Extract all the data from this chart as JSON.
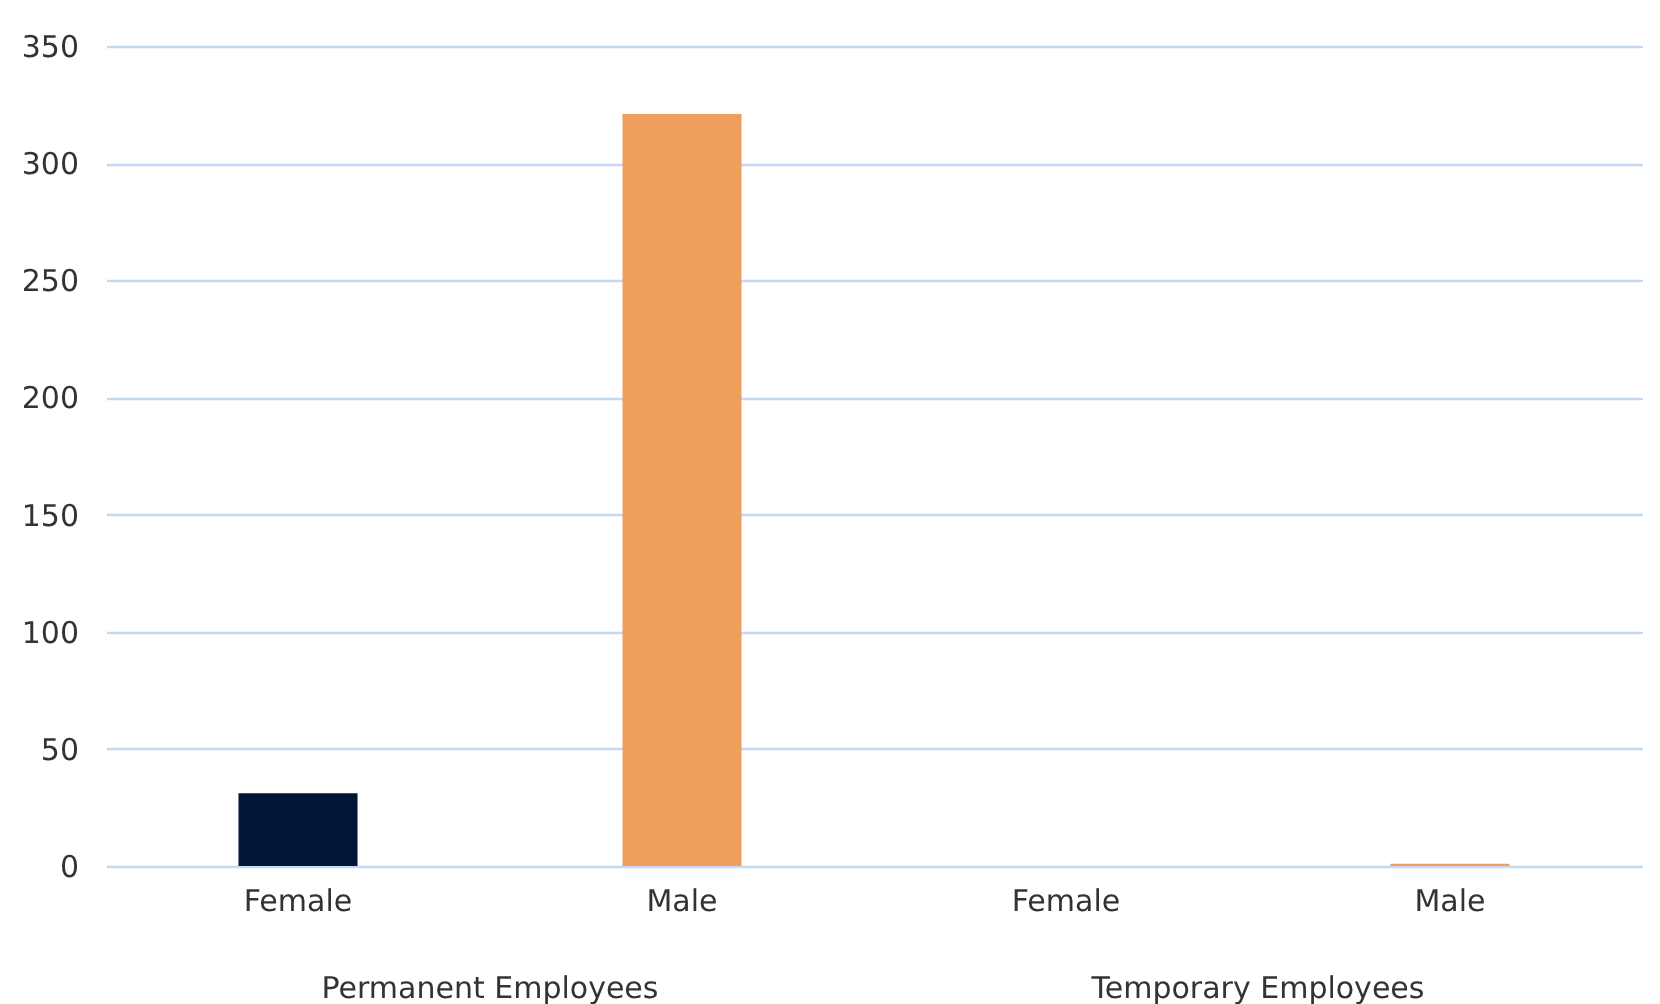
{
  "chart_data": {
    "type": "bar",
    "categories": [
      "Female",
      "Male",
      "Female",
      "Male"
    ],
    "values": [
      31,
      321,
      0,
      1
    ],
    "colors": [
      "#001738",
      "#f09e5b",
      "#001738",
      "#f09e5b"
    ],
    "ylim": [
      0,
      350
    ],
    "yticks": [
      0,
      50,
      100,
      150,
      200,
      250,
      300,
      350
    ],
    "grid": "y",
    "annotations": [
      "Permanent Employees",
      "Temporary Employees"
    ]
  }
}
